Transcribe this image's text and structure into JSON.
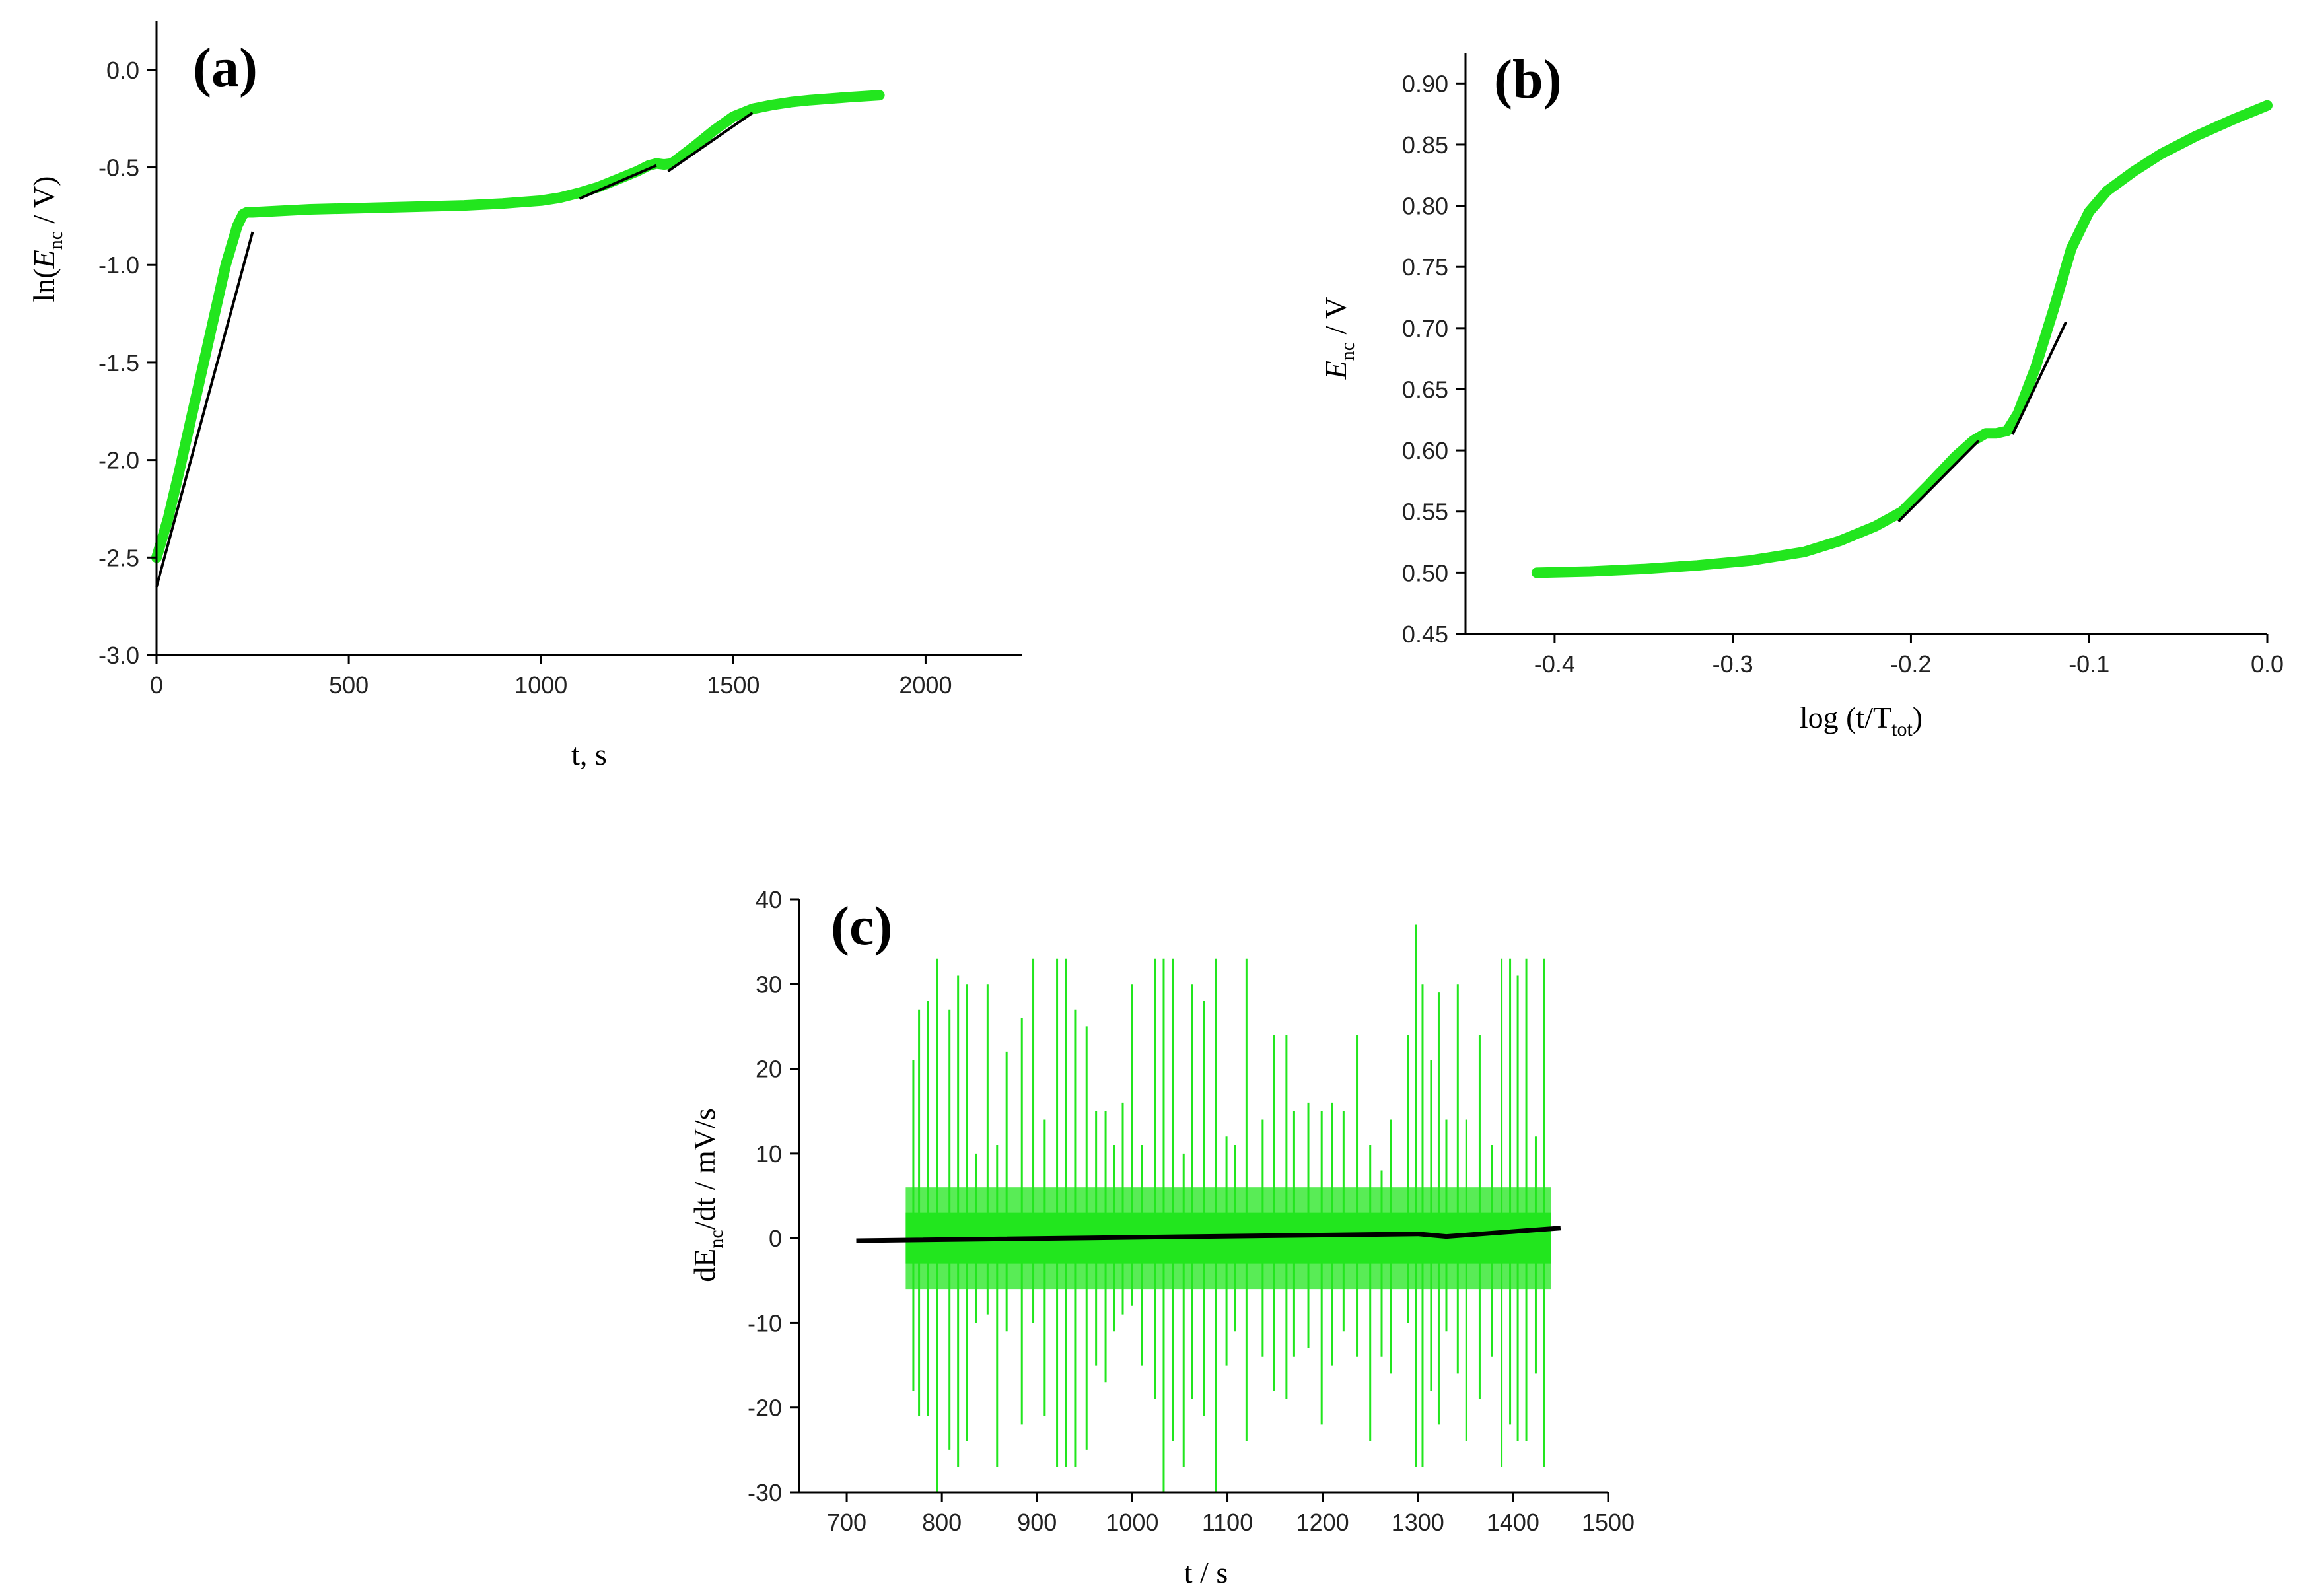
{
  "chart_data": [
    {
      "id": "a",
      "type": "line",
      "panel_label": "(a)",
      "xlabel": "t, s",
      "ylabel_prefix": "ln(",
      "ylabel_var": "E",
      "ylabel_sub": "nc",
      "ylabel_suffix": " / V)",
      "xlim": [
        0,
        2250
      ],
      "ylim": [
        -3.0,
        0.25
      ],
      "xticks": [
        0,
        500,
        1000,
        1500,
        2000
      ],
      "xtick_labels": [
        "0",
        "500",
        "1000",
        "1500",
        "2000"
      ],
      "yticks": [
        -3.0,
        -2.5,
        -2.0,
        -1.5,
        -1.0,
        -0.5,
        0.0
      ],
      "ytick_labels": [
        "-3.0",
        "-2.5",
        "-2.0",
        "-1.5",
        "-1.0",
        "-0.5",
        "0.0"
      ],
      "series": [
        {
          "name": "data",
          "style": "green",
          "x": [
            0,
            30,
            60,
            100,
            140,
            180,
            210,
            225,
            235,
            250,
            300,
            400,
            500,
            600,
            700,
            800,
            900,
            1000,
            1050,
            1100,
            1150,
            1200,
            1250,
            1280,
            1300,
            1320,
            1340,
            1360,
            1400,
            1450,
            1500,
            1550,
            1600,
            1650,
            1700,
            1800,
            1880
          ],
          "y": [
            -2.5,
            -2.3,
            -2.05,
            -1.7,
            -1.35,
            -1.0,
            -0.8,
            -0.74,
            -0.73,
            -0.73,
            -0.725,
            -0.715,
            -0.71,
            -0.705,
            -0.7,
            -0.695,
            -0.685,
            -0.67,
            -0.655,
            -0.63,
            -0.6,
            -0.56,
            -0.52,
            -0.49,
            -0.48,
            -0.485,
            -0.48,
            -0.45,
            -0.39,
            -0.31,
            -0.24,
            -0.2,
            -0.18,
            -0.165,
            -0.155,
            -0.14,
            -0.13
          ]
        },
        {
          "name": "fit-1",
          "style": "black",
          "x": [
            0,
            250
          ],
          "y": [
            -2.65,
            -0.83
          ]
        },
        {
          "name": "fit-2",
          "style": "black",
          "x": [
            1100,
            1300
          ],
          "y": [
            -0.66,
            -0.49
          ]
        },
        {
          "name": "fit-3",
          "style": "black",
          "x": [
            1330,
            1550
          ],
          "y": [
            -0.52,
            -0.22
          ]
        }
      ]
    },
    {
      "id": "b",
      "type": "line",
      "panel_label": "(b)",
      "xlabel_prefix": "log (t/T",
      "xlabel_sub": "tot",
      "xlabel_suffix": ")",
      "ylabel_var": "E",
      "ylabel_sub": "nc",
      "ylabel_suffix": " / V",
      "xlim": [
        -0.45,
        0.0
      ],
      "ylim": [
        0.45,
        0.925
      ],
      "xticks": [
        -0.4,
        -0.3,
        -0.2,
        -0.1,
        0.0
      ],
      "xtick_labels": [
        "-0.4",
        "-0.3",
        "-0.2",
        "-0.1",
        "0.0"
      ],
      "yticks": [
        0.45,
        0.5,
        0.55,
        0.6,
        0.65,
        0.7,
        0.75,
        0.8,
        0.85,
        0.9
      ],
      "ytick_labels": [
        "0.45",
        "0.50",
        "0.55",
        "0.60",
        "0.65",
        "0.70",
        "0.75",
        "0.80",
        "0.85",
        "0.90"
      ],
      "series": [
        {
          "name": "data",
          "style": "green",
          "x": [
            -0.41,
            -0.38,
            -0.35,
            -0.32,
            -0.29,
            -0.26,
            -0.24,
            -0.22,
            -0.205,
            -0.19,
            -0.175,
            -0.165,
            -0.158,
            -0.152,
            -0.146,
            -0.14,
            -0.13,
            -0.12,
            -0.11,
            -0.1,
            -0.09,
            -0.075,
            -0.06,
            -0.04,
            -0.02,
            0.0
          ],
          "y": [
            0.5,
            0.501,
            0.503,
            0.506,
            0.51,
            0.517,
            0.526,
            0.538,
            0.55,
            0.572,
            0.595,
            0.608,
            0.614,
            0.614,
            0.616,
            0.63,
            0.668,
            0.715,
            0.765,
            0.795,
            0.812,
            0.828,
            0.842,
            0.857,
            0.87,
            0.882
          ]
        },
        {
          "name": "fit-1",
          "style": "black",
          "x": [
            -0.207,
            -0.162
          ],
          "y": [
            0.542,
            0.608
          ]
        },
        {
          "name": "fit-2",
          "style": "black",
          "x": [
            -0.143,
            -0.113
          ],
          "y": [
            0.613,
            0.705
          ]
        }
      ]
    },
    {
      "id": "c",
      "type": "line",
      "panel_label": "(c)",
      "xlabel": "t / s",
      "ylabel_prefix": "dE",
      "ylabel_sub": "nc",
      "ylabel_suffix": "/dt / mV/s",
      "xlim": [
        650,
        1500
      ],
      "ylim": [
        -30,
        40
      ],
      "xticks": [
        700,
        800,
        900,
        1000,
        1100,
        1200,
        1300,
        1400,
        1500
      ],
      "xtick_labels": [
        "700",
        "800",
        "900",
        "1000",
        "1100",
        "1200",
        "1300",
        "1400",
        "1500"
      ],
      "yticks": [
        -30,
        -20,
        -10,
        0,
        10,
        20,
        30,
        40
      ],
      "ytick_labels": [
        "-30",
        "-20",
        "-10",
        "0",
        "10",
        "20",
        "30",
        "40"
      ],
      "band": {
        "x_range": [
          762,
          1440
        ],
        "inner_range": [
          -3,
          3
        ],
        "outer_range": [
          -6,
          6
        ]
      },
      "spikes": {
        "x": [
          770,
          776,
          785,
          795,
          808,
          817,
          826,
          836,
          848,
          858,
          868,
          884,
          896,
          908,
          921,
          930,
          940,
          952,
          962,
          972,
          981,
          990,
          1000,
          1010,
          1024,
          1033,
          1043,
          1054,
          1063,
          1075,
          1088,
          1099,
          1108,
          1120,
          1137,
          1149,
          1162,
          1170,
          1185,
          1199,
          1210,
          1222,
          1236,
          1250,
          1262,
          1272,
          1290,
          1298,
          1305,
          1314,
          1322,
          1330,
          1342,
          1351,
          1365,
          1378,
          1388,
          1397,
          1405,
          1414,
          1424,
          1433
        ],
        "up": [
          21,
          27,
          28,
          33,
          27,
          31,
          30,
          10,
          30,
          11,
          22,
          26,
          33,
          14,
          33,
          33,
          27,
          25,
          15,
          15,
          11,
          16,
          30,
          11,
          33,
          33,
          33,
          10,
          30,
          28,
          33,
          12,
          11,
          33,
          14,
          24,
          24,
          15,
          16,
          15,
          16,
          15,
          24,
          11,
          8,
          14,
          24,
          37,
          30,
          21,
          29,
          14,
          30,
          14,
          24,
          11,
          33,
          33,
          31,
          33,
          12,
          33
        ],
        "down": [
          -18,
          -21,
          -21,
          -30,
          -25,
          -27,
          -24,
          -10,
          -9,
          -27,
          -11,
          -22,
          -10,
          -21,
          -27,
          -27,
          -27,
          -25,
          -15,
          -17,
          -11,
          -9,
          -8,
          -15,
          -19,
          -30,
          -24,
          -27,
          -19,
          -21,
          -30,
          -15,
          -11,
          -24,
          -14,
          -18,
          -19,
          -14,
          -13,
          -22,
          -15,
          -11,
          -14,
          -24,
          -14,
          -16,
          -10,
          -27,
          -27,
          -18,
          -22,
          -11,
          -16,
          -24,
          -19,
          -14,
          -27,
          -22,
          -24,
          -24,
          -16,
          -27
        ]
      },
      "series": [
        {
          "name": "trend",
          "style": "black",
          "x": [
            710,
            1300,
            1330,
            1450
          ],
          "y": [
            -0.3,
            0.5,
            0.2,
            1.2
          ]
        }
      ]
    }
  ]
}
